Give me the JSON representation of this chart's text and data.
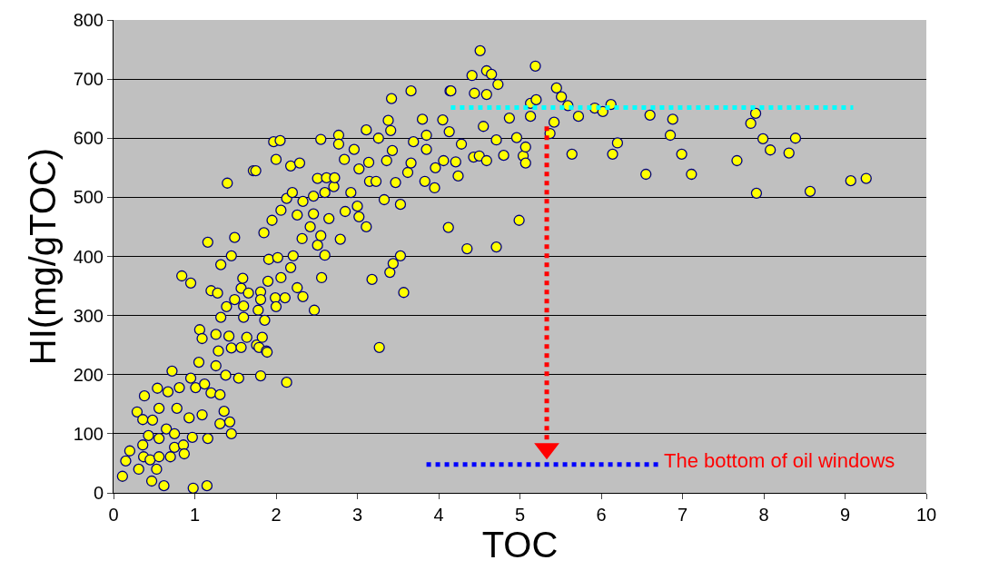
{
  "chart_data": {
    "type": "scatter",
    "xlabel": "TOC",
    "ylabel": "HI(mg/gTOC)",
    "xlim": [
      0,
      10
    ],
    "xticks": [
      0,
      1,
      2,
      3,
      4,
      5,
      6,
      7,
      8,
      9,
      10
    ],
    "ylim": [
      0,
      800
    ],
    "yticks": [
      0,
      100,
      200,
      300,
      400,
      500,
      600,
      700,
      800
    ],
    "grid": "y",
    "series": [
      {
        "marker": "circle",
        "color": "#ffff00",
        "x": [
          0.11,
          0.15,
          0.2,
          0.29,
          0.31,
          0.36,
          0.36,
          0.37,
          0.38,
          0.43,
          0.45,
          0.47,
          0.48,
          0.53,
          0.54,
          0.56,
          0.56,
          0.56,
          0.62,
          0.65,
          0.67,
          0.7,
          0.72,
          0.75,
          0.75,
          0.78,
          0.81,
          0.84,
          0.86,
          0.87,
          0.93,
          0.95,
          0.95,
          0.97,
          0.98,
          1.01,
          1.05,
          1.06,
          1.09,
          1.09,
          1.12,
          1.15,
          1.16,
          1.16,
          1.2,
          1.2,
          1.26,
          1.26,
          1.28,
          1.29,
          1.31,
          1.31,
          1.32,
          1.32,
          1.36,
          1.38,
          1.39,
          1.4,
          1.42,
          1.43,
          1.45,
          1.45,
          1.45,
          1.49,
          1.49,
          1.54,
          1.57,
          1.57,
          1.59,
          1.6,
          1.6,
          1.64,
          1.66,
          1.72,
          1.75,
          1.76,
          1.78,
          1.79,
          1.81,
          1.81,
          1.81,
          1.83,
          1.85,
          1.86,
          1.88,
          1.89,
          1.9,
          1.91,
          1.95,
          1.97,
          1.99,
          2.0,
          2.0,
          2.02,
          2.05,
          2.06,
          2.06,
          2.11,
          2.13,
          2.13,
          2.18,
          2.18,
          2.2,
          2.21,
          2.26,
          2.26,
          2.29,
          2.32,
          2.33,
          2.33,
          2.42,
          2.46,
          2.46,
          2.47,
          2.51,
          2.51,
          2.55,
          2.55,
          2.56,
          2.6,
          2.6,
          2.62,
          2.65,
          2.71,
          2.72,
          2.77,
          2.77,
          2.79,
          2.84,
          2.85,
          2.92,
          2.96,
          3.0,
          3.02,
          3.02,
          3.11,
          3.11,
          3.14,
          3.15,
          3.18,
          3.23,
          3.26,
          3.27,
          3.33,
          3.36,
          3.38,
          3.4,
          3.41,
          3.42,
          3.43,
          3.44,
          3.47,
          3.53,
          3.53,
          3.57,
          3.62,
          3.66,
          3.66,
          3.69,
          3.8,
          3.83,
          3.85,
          3.85,
          3.95,
          3.96,
          4.05,
          4.06,
          4.12,
          4.13,
          4.14,
          4.15,
          4.21,
          4.24,
          4.28,
          4.35,
          4.41,
          4.43,
          4.44,
          4.5,
          4.51,
          4.55,
          4.59,
          4.59,
          4.59,
          4.65,
          4.71,
          4.71,
          4.73,
          4.8,
          4.87,
          4.96,
          4.99,
          5.04,
          5.07,
          5.07,
          5.13,
          5.13,
          5.19,
          5.2,
          5.37,
          5.42,
          5.45,
          5.51,
          5.59,
          5.64,
          5.72,
          5.92,
          6.02,
          6.12,
          6.14,
          6.2,
          6.55,
          6.6,
          6.85,
          6.88,
          6.99,
          7.11,
          7.67,
          7.84,
          7.9,
          7.91,
          7.99,
          8.08,
          8.31,
          8.39,
          8.57,
          9.07,
          9.26
        ],
        "values": [
          28,
          54,
          71,
          137,
          40,
          124,
          81,
          61,
          164,
          97,
          56,
          20,
          123,
          40,
          177,
          143,
          92,
          61,
          12,
          108,
          171,
          61,
          206,
          100,
          77,
          143,
          178,
          367,
          81,
          66,
          127,
          355,
          194,
          94,
          8,
          178,
          221,
          276,
          261,
          132,
          184,
          12,
          424,
          92,
          342,
          169,
          268,
          215,
          338,
          240,
          166,
          117,
          386,
          297,
          138,
          199,
          315,
          524,
          265,
          120,
          401,
          245,
          100,
          432,
          327,
          194,
          346,
          246,
          363,
          316,
          297,
          263,
          338,
          545,
          545,
          250,
          309,
          246,
          340,
          327,
          198,
          263,
          440,
          292,
          240,
          238,
          358,
          395,
          461,
          594,
          330,
          564,
          315,
          398,
          596,
          478,
          364,
          330,
          498,
          187,
          553,
          381,
          508,
          401,
          470,
          347,
          558,
          430,
          493,
          332,
          450,
          502,
          472,
          309,
          532,
          419,
          598,
          435,
          364,
          508,
          402,
          533,
          464,
          518,
          533,
          605,
          590,
          429,
          564,
          476,
          508,
          581,
          485,
          548,
          467,
          614,
          450,
          559,
          527,
          361,
          527,
          600,
          246,
          496,
          562,
          630,
          373,
          613,
          667,
          579,
          388,
          525,
          488,
          401,
          339,
          542,
          558,
          680,
          594,
          632,
          527,
          605,
          581,
          516,
          550,
          631,
          562,
          449,
          611,
          680,
          680,
          560,
          536,
          590,
          413,
          706,
          568,
          676,
          570,
          748,
          620,
          714,
          674,
          562,
          708,
          597,
          416,
          691,
          571,
          634,
          601,
          461,
          570,
          585,
          558,
          659,
          637,
          722,
          665,
          608,
          627,
          685,
          670,
          655,
          573,
          637,
          651,
          645,
          657,
          573,
          592,
          539,
          639,
          605,
          632,
          573,
          539,
          562,
          625,
          642,
          507,
          599,
          580,
          575,
          600,
          510,
          528,
          532
        ]
      },
      {
        "type": "line",
        "color": "#00ffff",
        "line_style": "dotted",
        "x": [
          4.15,
          9.1
        ],
        "values": [
          652,
          652
        ]
      },
      {
        "type": "line",
        "color": "#0000ff",
        "line_style": "dotted",
        "x": [
          3.85,
          6.7
        ],
        "values": [
          48,
          48
        ]
      },
      {
        "type": "line",
        "color": "#ff0000",
        "line_style": "dotted",
        "marker": "triangle",
        "x": [
          5.33,
          5.33
        ],
        "values": [
          620,
          75
        ]
      }
    ],
    "annotations": [
      {
        "text": "The bottom of oil windows",
        "x": 6.7,
        "y": 48
      }
    ]
  }
}
